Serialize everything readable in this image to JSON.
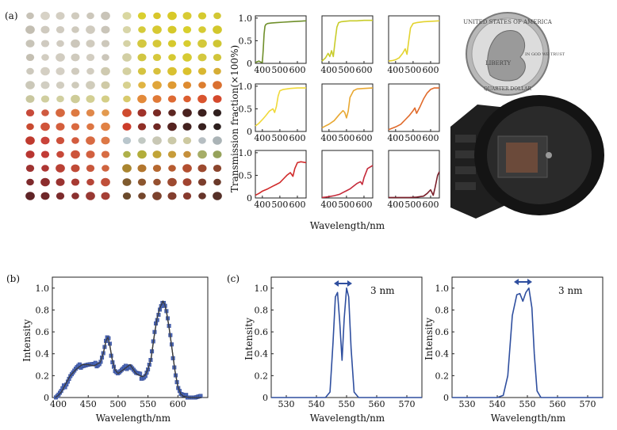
{
  "panel_labels": {
    "a": "(a)",
    "b": "(b)",
    "c": "(c)"
  },
  "colors": {
    "spectrum_line": "#2f4f9f",
    "marker": "#4a66b5",
    "fit_line": "#3a3a3a"
  },
  "filter_array": {
    "colors": [
      [
        "#c7c2b7",
        "#d7d2c6",
        "#d3cec2",
        "#d0cbbe",
        "#ccc7bb",
        "#c9c4b8",
        "#d9d7a0",
        "#d9cf2f",
        "#d8c62b",
        "#d8c928",
        "#d8cb33",
        "#d5ca2f",
        "#d2c734"
      ],
      [
        "#c3beb2",
        "#cfcabf",
        "#d0cbc0",
        "#cfcabd",
        "#d0cbbf",
        "#cac5b9",
        "#d8d5a8",
        "#d5cb3a",
        "#d7c932",
        "#d6c92b",
        "#d8cf2d",
        "#d6cb34",
        "#d2c72c"
      ],
      [
        "#c8c4b8",
        "#cfcac0",
        "#d0cbc0",
        "#ccc7bb",
        "#d0cbbe",
        "#cdc8bb",
        "#d5d2a5",
        "#d4c840",
        "#d6c837",
        "#d6c92d",
        "#d8cd2f",
        "#d4c93a",
        "#cfc633"
      ],
      [
        "#c4bfb2",
        "#d2cdc1",
        "#d1ccc0",
        "#cfcabd",
        "#d2cdc1",
        "#cbc6ba",
        "#d2cfa4",
        "#d1c642",
        "#d6c83c",
        "#d5c932",
        "#d6cb33",
        "#d4c83f",
        "#d1c53a"
      ],
      [
        "#cdc9bd",
        "#d4cfc3",
        "#d4cfc4",
        "#d0cbbe",
        "#d2cdc0",
        "#cfcab0",
        "#d4d0a0",
        "#d5c340",
        "#d8c03c",
        "#d9c131",
        "#dbc12d",
        "#d9b731",
        "#d6ad35"
      ],
      [
        "#cbc8b9",
        "#d1cec2",
        "#d1cdc0",
        "#cecaba",
        "#d0ccbb",
        "#cfcaa6",
        "#d7d18f",
        "#e0b442",
        "#e0a53a",
        "#df9a33",
        "#de8b30",
        "#dc7d2f",
        "#da7030"
      ],
      [
        "#c9c79f",
        "#d0ce9f",
        "#d1cfa0",
        "#cecc98",
        "#d3cf93",
        "#d4ce86",
        "#d8ca6c",
        "#e38a3a",
        "#e07937",
        "#de6a33",
        "#dc5e30",
        "#d9542e",
        "#d4492c"
      ],
      [
        "#c74a3a",
        "#cf5a40",
        "#d6683f",
        "#dd7a42",
        "#e0884a",
        "#e39a4f",
        "#cf4b2e",
        "#a0322a",
        "#7a2a24",
        "#5c2621",
        "#4a221f",
        "#3d201e",
        "#30201f"
      ],
      [
        "#c84a30",
        "#d0543a",
        "#d45e3c",
        "#da6a40",
        "#dd7643",
        "#e18245",
        "#cc3c2a",
        "#8f2e26",
        "#6f2723",
        "#552320",
        "#43211f",
        "#37201e",
        "#2c1f1e"
      ],
      [
        "#bf3a2e",
        "#c9433a",
        "#cd503a",
        "#d35c3e",
        "#d86a42",
        "#dd7846",
        "#b9c6cc",
        "#c2c9c3",
        "#c8c7b4",
        "#cbc9a8",
        "#cdc9a0",
        "#b6bec2",
        "#aab3b6"
      ],
      [
        "#b83530",
        "#c13c36",
        "#c74838",
        "#cc543b",
        "#d2603f",
        "#d76d43",
        "#aeb04a",
        "#b2ad3a",
        "#c1a437",
        "#c79c3a",
        "#c58f3c",
        "#a6ad67",
        "#96a25b"
      ],
      [
        "#9e3230",
        "#ad3633",
        "#b94034",
        "#c04b37",
        "#c8573b",
        "#cf643f",
        "#a9852f",
        "#b2762e",
        "#b66830",
        "#b65b30",
        "#b24f30",
        "#9c4a2f",
        "#8b452d"
      ],
      [
        "#7e2a2c",
        "#8c2d2d",
        "#9a3330",
        "#a83b33",
        "#b64537",
        "#c0503a",
        "#7f5b2e",
        "#8c562e",
        "#965030",
        "#9d4a30",
        "#a14430",
        "#7c3e2c",
        "#6b3a2a"
      ],
      [
        "#5f2427",
        "#6e2729",
        "#7c2b2c",
        "#8a312f",
        "#983833",
        "#a54036",
        "#6a4a2b",
        "#74462c",
        "#7c422d",
        "#823e2e",
        "#873a2e",
        "#66342a",
        "#553028"
      ]
    ]
  },
  "coin_image": {
    "text": [
      "LIBERTY",
      "IN GOD WE TRUST",
      "UNITED STATES OF AMERICA",
      "QUARTER DOLLAR"
    ]
  },
  "camera_image": {},
  "small_multiples": {
    "ylabel": "Transmission fraction(×100%)",
    "xlabel": "Wavelength/nm",
    "xticks": [
      400,
      500,
      600
    ],
    "yticks": [
      "0",
      "0.5",
      "1.0"
    ]
  },
  "panel_b": {
    "xlabel": "Wavelength/nm",
    "ylabel": "Intensity",
    "xticks": [
      400,
      450,
      500,
      550,
      600
    ],
    "yticks": [
      "0",
      "0.2",
      "0.4",
      "0.6",
      "0.8",
      "1.0"
    ]
  },
  "panel_c": {
    "xlabel": "Wavelength/nm",
    "ylabel": "Intensity",
    "xticks": [
      530,
      540,
      550,
      560,
      570
    ],
    "yticks": [
      "0",
      "0.2",
      "0.4",
      "0.6",
      "0.8",
      "1.0"
    ],
    "annotation": "3 nm"
  },
  "chart_data": [
    {
      "type": "line",
      "xlabel": "Wavelength/nm",
      "ylabel": "Transmission fraction(×100%)",
      "xlim": [
        360,
        650
      ],
      "ylim": [
        0,
        1.05
      ],
      "series": [
        {
          "color": "#6f8f2a",
          "x": [
            360,
            380,
            390,
            400,
            405,
            410,
            415,
            420,
            430,
            450,
            480,
            520,
            560,
            600,
            650
          ],
          "values": [
            0.02,
            0.05,
            0.03,
            0.02,
            0.3,
            0.65,
            0.82,
            0.86,
            0.88,
            0.89,
            0.9,
            0.91,
            0.92,
            0.93,
            0.94
          ]
        },
        {
          "color": "#c8cc2a",
          "x": [
            360,
            380,
            395,
            405,
            415,
            425,
            435,
            445,
            455,
            470,
            490,
            520,
            560,
            600,
            650
          ],
          "values": [
            0.05,
            0.12,
            0.22,
            0.15,
            0.28,
            0.15,
            0.5,
            0.8,
            0.9,
            0.92,
            0.93,
            0.94,
            0.94,
            0.95,
            0.95
          ]
        },
        {
          "color": "#e3d32f",
          "x": [
            360,
            380,
            400,
            420,
            440,
            455,
            465,
            475,
            485,
            500,
            520,
            560,
            600,
            650
          ],
          "values": [
            0.05,
            0.06,
            0.08,
            0.12,
            0.22,
            0.32,
            0.2,
            0.5,
            0.78,
            0.88,
            0.9,
            0.92,
            0.93,
            0.94
          ]
        },
        {
          "color": "#f0d93a",
          "x": [
            360,
            380,
            400,
            420,
            440,
            460,
            470,
            480,
            490,
            500,
            520,
            560,
            600,
            650
          ],
          "values": [
            0.12,
            0.18,
            0.26,
            0.35,
            0.45,
            0.5,
            0.42,
            0.55,
            0.78,
            0.9,
            0.93,
            0.95,
            0.96,
            0.96
          ]
        },
        {
          "color": "#e8a832",
          "x": [
            360,
            380,
            400,
            430,
            460,
            480,
            490,
            500,
            510,
            520,
            540,
            560,
            600,
            650
          ],
          "values": [
            0.08,
            0.12,
            0.16,
            0.24,
            0.38,
            0.46,
            0.42,
            0.3,
            0.45,
            0.75,
            0.9,
            0.94,
            0.95,
            0.96
          ]
        },
        {
          "color": "#e06a2a",
          "x": [
            360,
            380,
            400,
            430,
            460,
            480,
            500,
            510,
            520,
            540,
            560,
            580,
            600,
            620,
            650
          ],
          "values": [
            0.04,
            0.07,
            0.1,
            0.16,
            0.28,
            0.36,
            0.46,
            0.52,
            0.4,
            0.55,
            0.72,
            0.85,
            0.93,
            0.96,
            0.96
          ]
        },
        {
          "color": "#d02a2a",
          "x": [
            360,
            380,
            400,
            430,
            460,
            480,
            500,
            520,
            540,
            560,
            575,
            585,
            600,
            620,
            650
          ],
          "values": [
            0.06,
            0.1,
            0.15,
            0.2,
            0.26,
            0.3,
            0.34,
            0.42,
            0.5,
            0.56,
            0.48,
            0.65,
            0.78,
            0.8,
            0.78
          ]
        },
        {
          "color": "#c52a3a",
          "x": [
            360,
            380,
            400,
            430,
            460,
            480,
            500,
            520,
            540,
            560,
            580,
            590,
            600,
            620,
            650
          ],
          "values": [
            0.01,
            0.02,
            0.03,
            0.05,
            0.08,
            0.12,
            0.16,
            0.2,
            0.26,
            0.32,
            0.36,
            0.3,
            0.45,
            0.65,
            0.72
          ]
        },
        {
          "color": "#7a1f2a",
          "x": [
            360,
            400,
            440,
            480,
            520,
            560,
            580,
            600,
            615,
            625,
            640,
            650
          ],
          "values": [
            0.01,
            0.01,
            0.01,
            0.01,
            0.02,
            0.04,
            0.1,
            0.18,
            0.06,
            0.22,
            0.5,
            0.58
          ]
        }
      ]
    },
    {
      "type": "line",
      "xlabel": "Wavelength/nm",
      "ylabel": "Intensity",
      "xlim": [
        390,
        650
      ],
      "ylim": [
        0,
        1.1
      ],
      "series": [
        {
          "color": "#3a3a3a",
          "x": [
            395,
            400,
            405,
            410,
            420,
            430,
            440,
            450,
            460,
            470,
            475,
            480,
            483,
            486,
            490,
            495,
            500,
            510,
            520,
            530,
            540,
            545,
            550,
            555,
            560,
            565,
            570,
            575,
            578,
            581,
            585,
            590,
            595,
            600,
            605,
            610,
            620,
            640
          ],
          "values": [
            0.0,
            0.02,
            0.05,
            0.1,
            0.2,
            0.26,
            0.3,
            0.3,
            0.29,
            0.32,
            0.4,
            0.52,
            0.55,
            0.48,
            0.35,
            0.25,
            0.22,
            0.26,
            0.3,
            0.22,
            0.19,
            0.2,
            0.26,
            0.35,
            0.55,
            0.72,
            0.82,
            0.88,
            0.85,
            0.78,
            0.65,
            0.45,
            0.25,
            0.1,
            0.03,
            0.01,
            0.0,
            0.0
          ]
        }
      ]
    },
    {
      "type": "line",
      "xlabel": "Wavelength/nm",
      "ylabel": "Intensity",
      "xlim": [
        525,
        575
      ],
      "ylim": [
        0,
        1.1
      ],
      "series": [
        {
          "color": "#2f4f9f",
          "x": [
            525,
            540,
            543,
            544.5,
            545.5,
            546.3,
            547,
            547.7,
            548.5,
            549.2,
            550,
            550.7,
            551.5,
            552.5,
            554,
            575
          ],
          "values": [
            0,
            0,
            0,
            0.05,
            0.5,
            0.92,
            0.96,
            0.7,
            0.34,
            0.72,
            1.0,
            0.92,
            0.45,
            0.05,
            0,
            0
          ]
        }
      ]
    },
    {
      "type": "line",
      "xlabel": "Wavelength/nm",
      "ylabel": "Intensity",
      "xlim": [
        525,
        575
      ],
      "ylim": [
        0,
        1.1
      ],
      "series": [
        {
          "color": "#2f4f9f",
          "x": [
            525,
            540,
            542,
            543.5,
            545,
            546.5,
            547.5,
            548.5,
            549.5,
            550.5,
            551.5,
            552.3,
            553.2,
            554.5,
            575
          ],
          "values": [
            0,
            0,
            0.02,
            0.2,
            0.75,
            0.94,
            0.95,
            0.88,
            0.96,
            1.0,
            0.82,
            0.4,
            0.06,
            0,
            0
          ]
        }
      ]
    }
  ]
}
